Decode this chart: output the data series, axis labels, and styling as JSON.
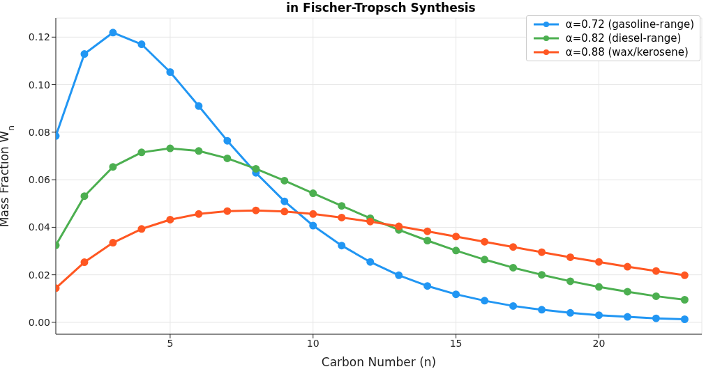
{
  "chart_data": {
    "type": "line",
    "title": "in Fischer-Tropsch Synthesis",
    "xlabel": "Carbon Number (n)",
    "ylabel": "Mass Fraction W$_{n}$",
    "x": [
      1,
      2,
      3,
      4,
      5,
      6,
      7,
      8,
      9,
      10,
      11,
      12,
      13,
      14,
      15,
      16,
      17,
      18,
      19,
      20,
      21,
      22,
      23
    ],
    "series": [
      {
        "name": "α=0.72 (gasoline-range)",
        "color": "#2196f3",
        "values": [
          0.0784,
          0.1129,
          0.1219,
          0.117,
          0.1053,
          0.091,
          0.0764,
          0.0629,
          0.0509,
          0.0407,
          0.0323,
          0.0254,
          0.0198,
          0.0153,
          0.0118,
          0.0091,
          0.0069,
          0.0053,
          0.004,
          0.003,
          0.0023,
          0.0017,
          0.0013
        ]
      },
      {
        "name": "α=0.82 (diesel-range)",
        "color": "#4caf50",
        "values": [
          0.0324,
          0.0531,
          0.0654,
          0.0715,
          0.0732,
          0.0721,
          0.069,
          0.0646,
          0.0596,
          0.0543,
          0.049,
          0.0438,
          0.0389,
          0.0344,
          0.0302,
          0.0264,
          0.023,
          0.02,
          0.0173,
          0.0149,
          0.0129,
          0.011,
          0.0095
        ]
      },
      {
        "name": "α=0.88 (wax/kerosene)",
        "color": "#ff5722",
        "values": [
          0.0144,
          0.0253,
          0.0335,
          0.0393,
          0.0432,
          0.0456,
          0.0468,
          0.0471,
          0.0466,
          0.0456,
          0.0441,
          0.0424,
          0.0404,
          0.0383,
          0.0361,
          0.0339,
          0.0317,
          0.0295,
          0.0274,
          0.0254,
          0.0234,
          0.0216,
          0.0198
        ]
      }
    ],
    "xlim": [
      1,
      23.6
    ],
    "xticks": [
      5,
      10,
      15,
      20
    ],
    "ylim": [
      -0.005,
      0.128
    ],
    "yticks": [
      {
        "value": 0,
        "label": "0.00"
      },
      {
        "value": 0.02,
        "label": "0.02"
      },
      {
        "value": 0.04,
        "label": "0.04"
      },
      {
        "value": 0.06,
        "label": "0.06"
      },
      {
        "value": 0.08,
        "label": "0.08"
      },
      {
        "value": 0.1,
        "label": "0.10"
      },
      {
        "value": 0.12,
        "label": "0.12"
      }
    ],
    "grid": true,
    "legend": "top right",
    "marker": "circle",
    "line_style": "solid"
  }
}
